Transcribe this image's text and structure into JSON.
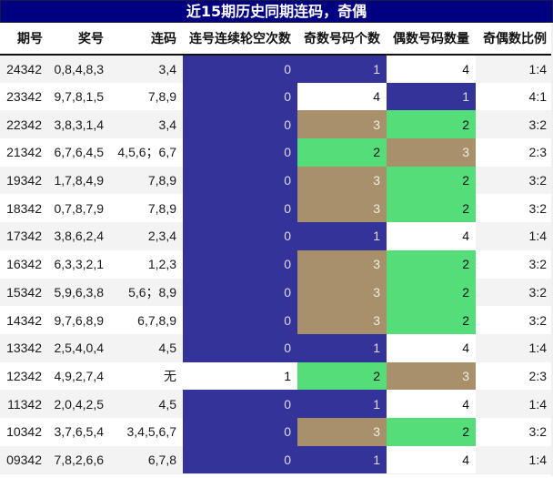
{
  "title": "近15期历史同期连码，奇偶",
  "colors": {
    "title_bg": "#000080",
    "blue": "#333399",
    "tan": "#a8906a",
    "green": "#55dd7a",
    "white": "#ffffff",
    "row_alt": "#f3f3f3"
  },
  "table": {
    "headers": [
      "期号",
      "奖号",
      "连码",
      "连号连续轮空次数",
      "奇数号码个数",
      "偶数号码数量",
      "奇偶数比例"
    ],
    "rows": [
      {
        "period": "24342",
        "numbers": "0,8,4,8,3",
        "consecutive": "3,4",
        "miss_count": "0",
        "odd_count": "1",
        "even_count": "4",
        "ratio": "1:4",
        "hl": {
          "miss": "blue",
          "odd": "blue",
          "even": "white"
        }
      },
      {
        "period": "23342",
        "numbers": "9,7,8,1,5",
        "consecutive": "7,8,9",
        "miss_count": "0",
        "odd_count": "4",
        "even_count": "1",
        "ratio": "4:1",
        "hl": {
          "miss": "blue",
          "odd": "white",
          "even": "blue"
        }
      },
      {
        "period": "22342",
        "numbers": "3,8,3,1,4",
        "consecutive": "3,4",
        "miss_count": "0",
        "odd_count": "3",
        "even_count": "2",
        "ratio": "3:2",
        "hl": {
          "miss": "blue",
          "odd": "tan",
          "even": "green"
        }
      },
      {
        "period": "21342",
        "numbers": "6,7,6,4,5",
        "consecutive": "4,5,6；6,7",
        "miss_count": "0",
        "odd_count": "2",
        "even_count": "3",
        "ratio": "2:3",
        "hl": {
          "miss": "blue",
          "odd": "green",
          "even": "tan"
        }
      },
      {
        "period": "19342",
        "numbers": "1,7,8,4,9",
        "consecutive": "7,8,9",
        "miss_count": "0",
        "odd_count": "3",
        "even_count": "2",
        "ratio": "3:2",
        "hl": {
          "miss": "blue",
          "odd": "tan",
          "even": "green"
        }
      },
      {
        "period": "18342",
        "numbers": "0,7,8,7,9",
        "consecutive": "7,8,9",
        "miss_count": "0",
        "odd_count": "3",
        "even_count": "2",
        "ratio": "3:2",
        "hl": {
          "miss": "blue",
          "odd": "tan",
          "even": "green"
        }
      },
      {
        "period": "17342",
        "numbers": "3,8,6,2,4",
        "consecutive": "2,3,4",
        "miss_count": "0",
        "odd_count": "1",
        "even_count": "4",
        "ratio": "1:4",
        "hl": {
          "miss": "blue",
          "odd": "blue",
          "even": "white"
        }
      },
      {
        "period": "16342",
        "numbers": "6,3,3,2,1",
        "consecutive": "1,2,3",
        "miss_count": "0",
        "odd_count": "3",
        "even_count": "2",
        "ratio": "3:2",
        "hl": {
          "miss": "blue",
          "odd": "tan",
          "even": "green"
        }
      },
      {
        "period": "15342",
        "numbers": "5,9,6,3,8",
        "consecutive": "5,6；8,9",
        "miss_count": "0",
        "odd_count": "3",
        "even_count": "2",
        "ratio": "3:2",
        "hl": {
          "miss": "blue",
          "odd": "tan",
          "even": "green"
        }
      },
      {
        "period": "14342",
        "numbers": "9,7,6,8,9",
        "consecutive": "6,7,8,9",
        "miss_count": "0",
        "odd_count": "3",
        "even_count": "2",
        "ratio": "3:2",
        "hl": {
          "miss": "blue",
          "odd": "tan",
          "even": "green"
        }
      },
      {
        "period": "13342",
        "numbers": "2,5,4,0,4",
        "consecutive": "4,5",
        "miss_count": "0",
        "odd_count": "1",
        "even_count": "4",
        "ratio": "1:4",
        "hl": {
          "miss": "blue",
          "odd": "blue",
          "even": "white"
        }
      },
      {
        "period": "12342",
        "numbers": "4,9,2,7,4",
        "consecutive": "无",
        "miss_count": "1",
        "odd_count": "2",
        "even_count": "3",
        "ratio": "2:3",
        "hl": {
          "miss": "white",
          "odd": "green",
          "even": "tan"
        }
      },
      {
        "period": "11342",
        "numbers": "2,0,4,2,5",
        "consecutive": "4,5",
        "miss_count": "0",
        "odd_count": "1",
        "even_count": "4",
        "ratio": "1:4",
        "hl": {
          "miss": "blue",
          "odd": "blue",
          "even": "white"
        }
      },
      {
        "period": "10342",
        "numbers": "3,7,6,5,4",
        "consecutive": "3,4,5,6,7",
        "miss_count": "0",
        "odd_count": "3",
        "even_count": "2",
        "ratio": "3:2",
        "hl": {
          "miss": "blue",
          "odd": "tan",
          "even": "green"
        }
      },
      {
        "period": "09342",
        "numbers": "7,8,2,6,6",
        "consecutive": "6,7,8",
        "miss_count": "0",
        "odd_count": "1",
        "even_count": "4",
        "ratio": "1:4",
        "hl": {
          "miss": "blue",
          "odd": "blue",
          "even": "white"
        }
      }
    ]
  }
}
